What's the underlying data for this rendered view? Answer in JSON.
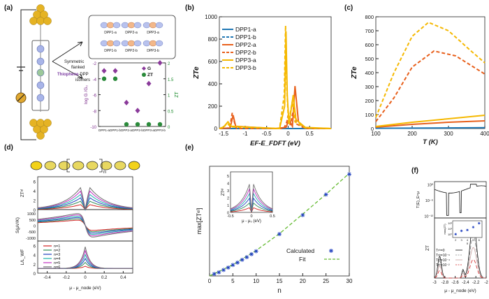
{
  "panels": {
    "a": {
      "label": "(a)",
      "molecule_labels": [
        "DPP1-a",
        "DPP1-b",
        "DPP2-a",
        "DPP2-b",
        "DPP3-a",
        "DPP3-b"
      ],
      "arrow_text": [
        "Symmetric",
        "flanked"
      ],
      "subtitle_parts": [
        "Thiophene",
        "-DPP",
        "isomers"
      ],
      "legend": [
        "G",
        "ZT"
      ],
      "left_ylabel": "log G /G₀",
      "right_ylabel": "ZT",
      "left_yticks": [
        "-2",
        "-4",
        "-6",
        "-8",
        "-10"
      ],
      "right_yticks": [
        "0",
        "0.5",
        "1",
        "1.5",
        "2"
      ]
    },
    "b": {
      "label": "(b)"
    },
    "c": {
      "label": "(c)"
    },
    "d": {
      "label": "(d)",
      "top_ylabel": "ZTᵉˡ",
      "mid_ylabel": "S(μV/K)",
      "bot_ylabel": "L/L_WF",
      "top_yticks": [
        "6",
        "4",
        "2",
        "0"
      ],
      "mid_yticks": [
        "1000",
        "500",
        "0",
        "-500",
        "-1000"
      ],
      "bot_yticks": [
        "6",
        "4",
        "2",
        "0"
      ],
      "xticks": [
        "-0.4",
        "-0.2",
        "0",
        "0.2",
        "0.4"
      ],
      "xlabel": "μ - μ_node (eV)",
      "legend": [
        "n=1",
        "n=2",
        "n=3",
        "n=4",
        "n=5",
        "n=6"
      ],
      "legend_colors": [
        "#d22222",
        "#2e8b57",
        "#1f3fbf",
        "#20b2aa",
        "#c030c0",
        "#707070"
      ],
      "chain_label": "n"
    },
    "e": {
      "label": "(e)"
    },
    "f": {
      "label": "(f)",
      "top_ylabel": "T(E)_E=μ",
      "top_yticks": [
        "10⁰",
        "10⁻⁶",
        "10⁻¹²"
      ],
      "bot_ylabel": "ZT",
      "xticks": [
        "-3",
        "-2.8",
        "-2.6",
        "-2.4",
        "-2.2",
        "-2"
      ],
      "xlabel": "μ - μ_node (eV)",
      "legend": [
        "Tᵖʰ=0",
        "Tᵖʰ=10⁻⁶",
        "Tᵖʰ=10⁻⁴",
        "Tᵖʰ=10⁻²"
      ],
      "inset_ylabel": "max(ZT)",
      "inset_xlabel": "n",
      "inset_xticks": [
        "2",
        "3",
        "4",
        "5",
        "6"
      ],
      "inset_yticks": [
        "10²",
        "10¹",
        "10⁰"
      ]
    }
  },
  "chart_data": [
    {
      "id": "b",
      "type": "line",
      "title": "",
      "xlabel": "E_F-E_F^DFT (eV)",
      "ylabel": "ZT_e",
      "xlim": [
        -1.6,
        1.0
      ],
      "ylim": [
        0,
        1000
      ],
      "xticks": [
        "-1.5",
        "-1",
        "-0.5",
        "0",
        "0.5"
      ],
      "yticks": [
        "0",
        "200",
        "400",
        "600",
        "800",
        "1000"
      ],
      "legend_position": "top-left",
      "series": [
        {
          "name": "DPP1-a",
          "color": "#1f77b4",
          "dash": false,
          "points": [
            [
              -1.6,
              0
            ],
            [
              1.0,
              0
            ]
          ]
        },
        {
          "name": "DPP1-b",
          "color": "#1f77b4",
          "dash": true,
          "points": [
            [
              -1.6,
              0
            ],
            [
              1.0,
              0
            ]
          ]
        },
        {
          "name": "DPP2-a",
          "color": "#e8601c",
          "dash": false,
          "points": [
            [
              -1.6,
              0
            ],
            [
              -1.35,
              5
            ],
            [
              -1.28,
              120
            ],
            [
              -1.22,
              20
            ],
            [
              -0.3,
              0
            ],
            [
              -0.05,
              10
            ],
            [
              0.02,
              80
            ],
            [
              0.1,
              20
            ],
            [
              0.16,
              380
            ],
            [
              0.24,
              60
            ],
            [
              0.4,
              5
            ],
            [
              1.0,
              0
            ]
          ]
        },
        {
          "name": "DPP2-b",
          "color": "#e8601c",
          "dash": true,
          "points": [
            [
              -1.6,
              0
            ],
            [
              -1.36,
              5
            ],
            [
              -1.3,
              140
            ],
            [
              -1.24,
              40
            ],
            [
              -1.2,
              0
            ],
            [
              -0.1,
              0
            ],
            [
              -0.03,
              60
            ],
            [
              0.0,
              120
            ],
            [
              0.05,
              30
            ],
            [
              0.14,
              200
            ],
            [
              0.2,
              40
            ],
            [
              0.4,
              0
            ],
            [
              1.0,
              0
            ]
          ]
        },
        {
          "name": "DPP3-a",
          "color": "#f5b800",
          "dash": false,
          "points": [
            [
              -1.6,
              0
            ],
            [
              -1.5,
              15
            ],
            [
              -1.4,
              60
            ],
            [
              -1.32,
              20
            ],
            [
              -0.2,
              0
            ],
            [
              -0.08,
              200
            ],
            [
              -0.05,
              870
            ],
            [
              -0.02,
              300
            ],
            [
              0.02,
              40
            ],
            [
              0.12,
              300
            ],
            [
              0.18,
              80
            ],
            [
              0.4,
              10
            ],
            [
              1.0,
              0
            ]
          ]
        },
        {
          "name": "DPP3-b",
          "color": "#f5b800",
          "dash": true,
          "points": [
            [
              -1.6,
              0
            ],
            [
              -1.5,
              10
            ],
            [
              -1.42,
              50
            ],
            [
              -1.34,
              15
            ],
            [
              -0.2,
              0
            ],
            [
              -0.09,
              300
            ],
            [
              -0.06,
              920
            ],
            [
              -0.03,
              350
            ],
            [
              0.01,
              50
            ],
            [
              0.1,
              250
            ],
            [
              0.16,
              60
            ],
            [
              0.4,
              5
            ],
            [
              1.0,
              0
            ]
          ]
        }
      ]
    },
    {
      "id": "c",
      "type": "line",
      "xlabel": "T (K)",
      "ylabel": "ZT_e",
      "xlim": [
        100,
        400
      ],
      "ylim": [
        0,
        800
      ],
      "xticks": [
        "100",
        "200",
        "300",
        "400"
      ],
      "yticks": [
        "0",
        "100",
        "200",
        "300",
        "400",
        "500",
        "600",
        "700",
        "800"
      ],
      "series": [
        {
          "name": "DPP1-a",
          "color": "#1f77b4",
          "dash": false,
          "points": [
            [
              100,
              2
            ],
            [
              250,
              4
            ],
            [
              400,
              6
            ]
          ]
        },
        {
          "name": "DPP2-a",
          "color": "#e8601c",
          "dash": false,
          "points": [
            [
              100,
              10
            ],
            [
              200,
              30
            ],
            [
              300,
              45
            ],
            [
              400,
              55
            ]
          ]
        },
        {
          "name": "DPP2-b",
          "color": "#e8601c",
          "dash": true,
          "points": [
            [
              100,
              50
            ],
            [
              150,
              220
            ],
            [
              200,
              440
            ],
            [
              260,
              555
            ],
            [
              320,
              520
            ],
            [
              400,
              390
            ]
          ]
        },
        {
          "name": "DPP3-a",
          "color": "#f5b800",
          "dash": false,
          "points": [
            [
              100,
              15
            ],
            [
              200,
              45
            ],
            [
              300,
              70
            ],
            [
              400,
              95
            ]
          ]
        },
        {
          "name": "DPP3-b",
          "color": "#f5b800",
          "dash": true,
          "points": [
            [
              100,
              80
            ],
            [
              150,
              400
            ],
            [
              200,
              660
            ],
            [
              245,
              760
            ],
            [
              300,
              700
            ],
            [
              360,
              560
            ],
            [
              400,
              470
            ]
          ]
        }
      ]
    },
    {
      "id": "e",
      "type": "scatter",
      "xlabel": "n",
      "ylabel": "max[ZTᵉˡ]",
      "xlim": [
        0,
        30
      ],
      "ylim": [
        0,
        55
      ],
      "xticks": [
        "0",
        "5",
        "10",
        "15",
        "20",
        "25",
        "30"
      ],
      "yticks": [],
      "legend": [
        "Calculated",
        "Fit"
      ],
      "series": [
        {
          "name": "Calculated",
          "color": "#1f3fbf",
          "marker": "asterisk",
          "x": [
            1,
            2,
            3,
            4,
            5,
            6,
            7,
            8,
            9,
            10,
            15,
            20,
            25,
            30
          ],
          "y": [
            1.0,
            1.8,
            3.0,
            4.2,
            5.5,
            6.7,
            8.1,
            9.4,
            10.9,
            12.4,
            21.0,
            30.5,
            40.8,
            51.0
          ]
        },
        {
          "name": "Fit",
          "color": "#66bb33",
          "dash": true,
          "x": [
            0,
            5,
            10,
            15,
            20,
            25,
            30
          ],
          "y": [
            0,
            5.6,
            12.8,
            21.2,
            31.0,
            41.0,
            51.5
          ]
        }
      ],
      "inset": {
        "ylabel": "ZTᵉˡ",
        "xlabel": "μ - μ₀ (eV)",
        "xticks": [
          "-0.5",
          "0",
          "0.5"
        ],
        "yticks": [
          "0",
          "1",
          "2",
          "3",
          "4",
          "5"
        ]
      }
    }
  ]
}
